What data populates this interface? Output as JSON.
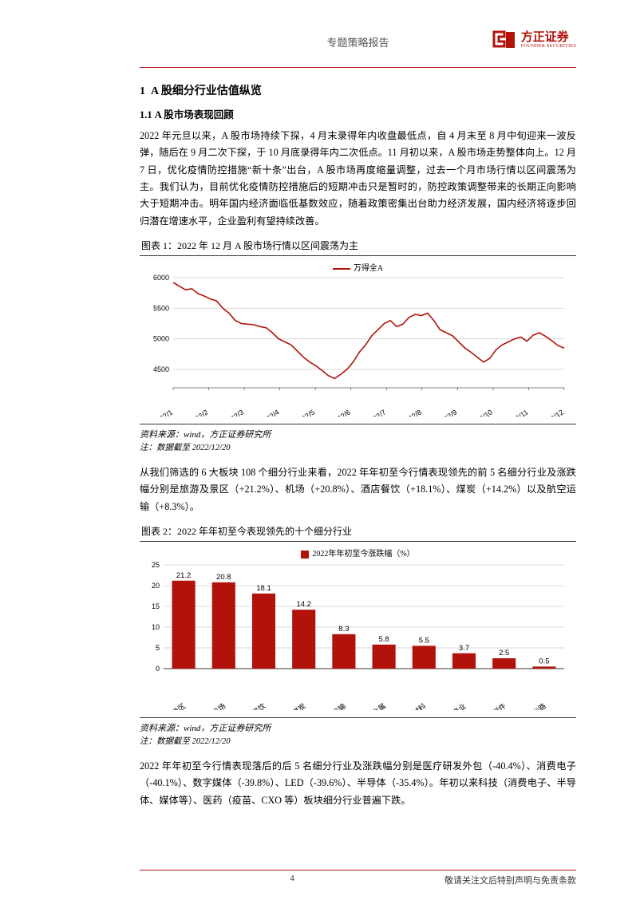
{
  "header": {
    "doc_title": "专题策略报告",
    "brand_name": "方正证券",
    "brand_sub": "FOUNDER SECURITIES",
    "brand_color": "#b1130b"
  },
  "section1": {
    "num": "1",
    "title": "A 股细分行业估值纵览"
  },
  "section11": {
    "num": "1.1",
    "title": "A 股市场表现回顾"
  },
  "para1": "2022 年元旦以来，A 股市场持续下探，4 月末录得年内收盘最低点，自 4 月末至 8 月中旬迎来一波反弹，随后在 9 月二次下探，于 10 月底录得年内二次低点。11 月初以来，A 股市场走势整体向上。12 月 7 日，优化疫情防控措施“新十条”出台，A 股市场再度缩量调整，过去一个月市场行情以区间震荡为主。我们认为，目前优化疫情防控措施后的短期冲击只是暂时的，防控政策调整带来的长期正向影响大于短期冲击。明年国内经济面临低基数效应，随着政策密集出台助力经济发展，国内经济将逐步回归潜在增速水平，企业盈利有望持续改善。",
  "chart1": {
    "caption": "图表 1：2022 年 12 月 A 股市场行情以区间震荡为主",
    "legend_label": "万得全A",
    "ylim": [
      4200,
      6000
    ],
    "ytick_step": 500,
    "yticks": [
      6000,
      5500,
      5000,
      4500
    ],
    "xlabels": [
      "2022/1",
      "2022/2",
      "2022/3",
      "2022/4",
      "2022/5",
      "2022/6",
      "2022/7",
      "2022/8",
      "2022/9",
      "2022/10",
      "2022/11",
      "2022/12"
    ],
    "line_color": "#b1130b",
    "grid_color": "#d9d9d9",
    "axis_fontsize": 9,
    "series": [
      5920,
      5860,
      5800,
      5820,
      5740,
      5700,
      5650,
      5620,
      5500,
      5420,
      5300,
      5250,
      5240,
      5230,
      5200,
      5180,
      5100,
      5000,
      4950,
      4900,
      4800,
      4700,
      4620,
      4560,
      4480,
      4400,
      4350,
      4420,
      4500,
      4620,
      4780,
      4900,
      5050,
      5150,
      5250,
      5300,
      5200,
      5240,
      5350,
      5400,
      5380,
      5420,
      5300,
      5150,
      5100,
      5050,
      4950,
      4850,
      4780,
      4700,
      4620,
      4680,
      4820,
      4900,
      4950,
      5000,
      5030,
      4960,
      5060,
      5100,
      5040,
      4970,
      4890,
      4850
    ],
    "source": "资料来源：wind，方正证券研究所",
    "note": "注：数据截至 2022/12/20"
  },
  "para2": "从我们筛选的 6 大板块 108 个细分行业来看，2022 年年初至今行情表现领先的前 5 名细分行业及涨跌幅分别是旅游及景区（+21.2%）、机场（+20.8%）、酒店餐饮（+18.1%）、煤炭（+14.2%）以及航空运输（+8.3%）。",
  "chart2": {
    "caption": "图表 2：2022 年年初至今表现领先的十个细分行业",
    "legend_label": "2022年年初至今涨跌幅（%）",
    "bar_color": "#b1130b",
    "grid_color": "#d9d9d9",
    "ylim": [
      0,
      25
    ],
    "ytick_step": 5,
    "yticks": [
      25,
      20,
      15,
      10,
      5,
      0
    ],
    "axis_fontsize": 9,
    "value_fontsize": 9.5,
    "categories": [
      "旅游及景区",
      "机场",
      "酒店餐饮",
      "煤炭",
      "航空运输",
      "贵金属",
      "非金属材料",
      "医药商业",
      "家电零部件",
      "铁路公路"
    ],
    "values": [
      21.2,
      20.8,
      18.1,
      14.2,
      8.3,
      5.8,
      5.5,
      3.7,
      2.5,
      0.5
    ],
    "source": "资料来源：wind，方正证券研究所",
    "note": "注：数据截至 2022/12/20"
  },
  "para3": "2022 年年初至今行情表现落后的后 5 名细分行业及涨跌幅分别是医疗研发外包（-40.4%）、消费电子（-40.1%）、数字媒体（-39.8%）、LED（-39.6%）、半导体（-35.4%）。年初以来科技（消费电子、半导体、媒体等）、医药（疫苗、CXO 等）板块细分行业普遍下跌。",
  "footer": {
    "page": "4",
    "disclaimer": "敬请关注文后特别声明与免责条款"
  }
}
